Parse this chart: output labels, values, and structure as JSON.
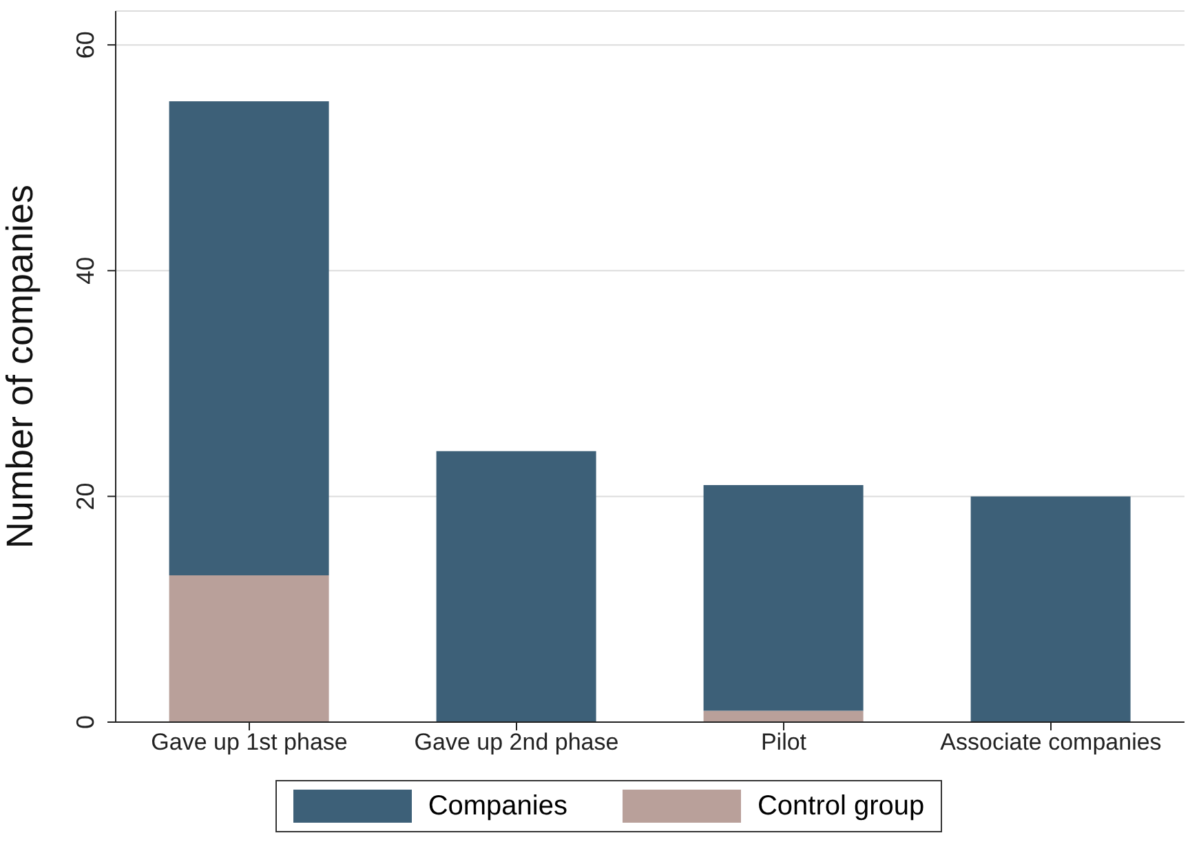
{
  "chart_data": {
    "type": "bar",
    "stacked": true,
    "ylabel": "Number of companies",
    "categories": [
      "Gave up 1st phase",
      "Gave up 2nd phase",
      "Pilot",
      "Associate companies"
    ],
    "series": [
      {
        "name": "Control group",
        "color": "#b9a09a",
        "values": [
          13,
          0,
          1,
          0
        ]
      },
      {
        "name": "Companies",
        "color": "#3d6078",
        "values": [
          42,
          24,
          20,
          20
        ]
      }
    ],
    "ylim": [
      0,
      63
    ],
    "yticks": [
      0,
      20,
      40,
      60
    ],
    "grid": "y",
    "legend": "bottom"
  }
}
